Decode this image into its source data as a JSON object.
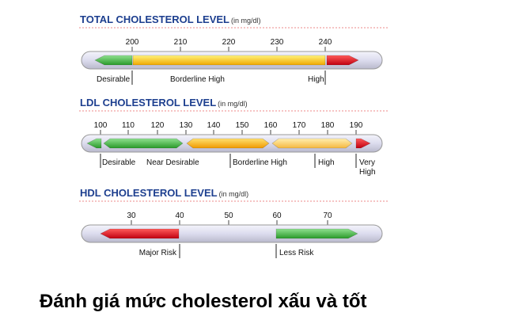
{
  "panels": [
    {
      "title": "TOTAL CHOLESTEROL LEVEL",
      "unit": "(in mg/dl)",
      "ticks": [
        200,
        210,
        220,
        230,
        240
      ],
      "labels": [
        "Desirable",
        "Borderline High",
        "High"
      ]
    },
    {
      "title": "LDL CHOLESTEROL LEVEL",
      "unit": "(in mg/dl)",
      "ticks": [
        100,
        110,
        120,
        130,
        140,
        150,
        160,
        170,
        180,
        190
      ],
      "labels": [
        "Desirable",
        "Near Desirable",
        "Borderline High",
        "High",
        [
          "Very",
          "High"
        ]
      ]
    },
    {
      "title": "HDL CHOLESTEROL LEVEL",
      "unit": "(in mg/dl)",
      "ticks": [
        30,
        40,
        50,
        60,
        70
      ],
      "labels": [
        "Major Risk",
        "Less Risk"
      ]
    }
  ],
  "caption": "Đánh giá mức cholesterol xấu và tốt"
}
